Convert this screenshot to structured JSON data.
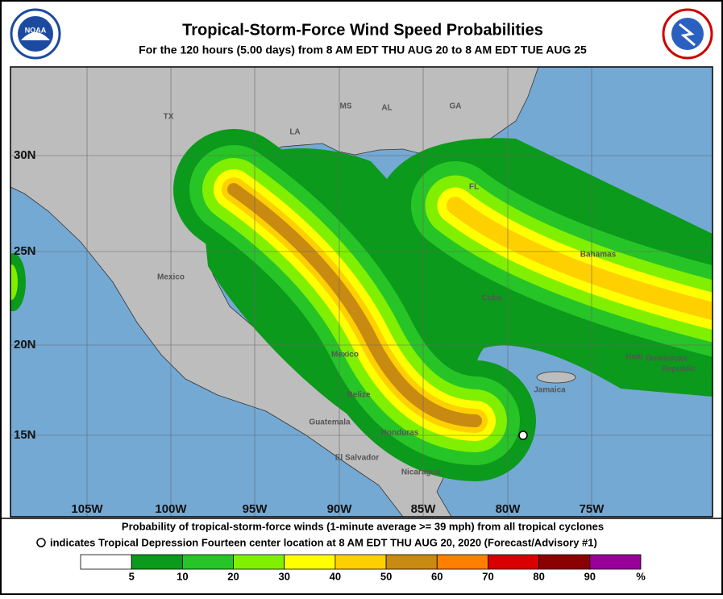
{
  "header": {
    "title": "Tropical-Storm-Force Wind Speed Probabilities",
    "subtitle": "For the 120 hours (5.00 days) from 8 AM EDT THU AUG 20 to 8 AM EDT TUE AUG 25",
    "noaa_logo": "NOAA"
  },
  "map": {
    "lat_labels": [
      "30N",
      "25N",
      "20N",
      "15N"
    ],
    "lon_labels": [
      "105W",
      "100W",
      "95W",
      "90W",
      "85W",
      "80W",
      "75W"
    ],
    "place_labels": [
      "TX",
      "LA",
      "MS",
      "AL",
      "GA",
      "FL",
      "Mexico",
      "Mexico",
      "Bahamas",
      "Cuba",
      "Haiti",
      "Dominican",
      "Republic",
      "Jamaica",
      "Belize",
      "Guatemala",
      "Honduras",
      "El Salvador",
      "Nicaragua"
    ]
  },
  "footer": {
    "caption": "Probability of tropical-storm-force winds (1-minute average >= 39 mph) from all tropical cyclones",
    "marker_caption": "indicates Tropical Depression Fourteen center location at 8 AM EDT THU AUG 20, 2020 (Forecast/Advisory #1)"
  },
  "legend": {
    "colors": [
      "#ffffff",
      "#0b9a1b",
      "#27c427",
      "#80f000",
      "#ffff00",
      "#ffd000",
      "#c88a10",
      "#ff8000",
      "#d80000",
      "#8b0000",
      "#990099"
    ],
    "ticks": [
      "5",
      "10",
      "20",
      "30",
      "40",
      "50",
      "60",
      "70",
      "80",
      "90",
      "%"
    ]
  }
}
